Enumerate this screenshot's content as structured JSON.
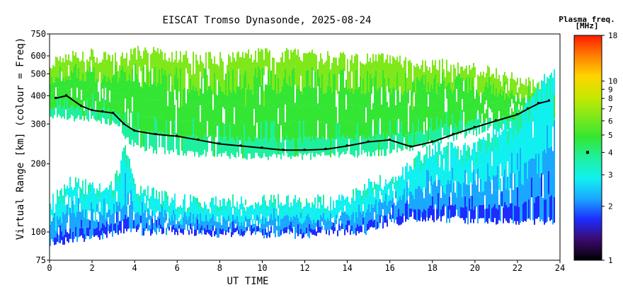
{
  "chart_data": {
    "type": "heatmap",
    "title": "EISCAT Tromso Dynasonde, 2025-08-24",
    "xlabel": "UT TIME",
    "ylabel": "Virtual Range [km] (colour = Freq)",
    "x_ticks": [
      0,
      2,
      4,
      6,
      8,
      10,
      12,
      14,
      16,
      18,
      20,
      22,
      24
    ],
    "xlim": [
      0,
      24
    ],
    "y_scale": "log",
    "ylim": [
      75,
      750
    ],
    "y_ticks": [
      75,
      100,
      200,
      300,
      400,
      500,
      600,
      750
    ],
    "colorbar": {
      "title_line1": "Plasma freq.",
      "title_line2": "[MHz]",
      "scale": "log",
      "range": [
        1,
        18
      ],
      "ticks": [
        1,
        2,
        3,
        4,
        5,
        6,
        7,
        8,
        9,
        10,
        18
      ],
      "marker_value": 4,
      "marker_color": "#000000",
      "colors": [
        "#000000",
        "#3b0a6e",
        "#1e2cff",
        "#1aa7ff",
        "#11f0f0",
        "#1ef0a0",
        "#33e633",
        "#7fe81a",
        "#c8e800",
        "#ffd400",
        "#ff7f00",
        "#ff1a00"
      ]
    },
    "bands": [
      {
        "name": "F",
        "t": [
          0,
          1,
          2,
          3,
          4,
          5,
          6,
          8,
          10,
          12,
          14,
          16,
          17,
          18,
          20,
          22,
          23.6
        ],
        "lower": [
          320,
          320,
          320,
          300,
          240,
          230,
          225,
          220,
          215,
          215,
          220,
          225,
          235,
          250,
          275,
          300,
          300
        ],
        "upper": [
          560,
          600,
          620,
          600,
          640,
          640,
          620,
          600,
          620,
          620,
          600,
          590,
          560,
          560,
          540,
          480,
          420
        ]
      },
      {
        "name": "E",
        "t": [
          0,
          1,
          2,
          3,
          3.6,
          4,
          6,
          8,
          10,
          12,
          14,
          15,
          16,
          18,
          20,
          22,
          23.6
        ],
        "lower": [
          90,
          92,
          95,
          98,
          100,
          100,
          100,
          98,
          97,
          97,
          100,
          100,
          110,
          115,
          112,
          112,
          112
        ],
        "upper": [
          135,
          170,
          160,
          160,
          240,
          160,
          140,
          140,
          140,
          140,
          140,
          170,
          170,
          240,
          240,
          330,
          520
        ]
      }
    ],
    "trace": {
      "color": "#000000",
      "t": [
        0.3,
        0.8,
        1.5,
        2.0,
        2.5,
        3.0,
        3.5,
        4.0,
        5.0,
        6.0,
        7.0,
        8.0,
        9.0,
        10.0,
        11.0,
        12.0,
        13.0,
        14.0,
        15.0,
        16.0,
        17.0,
        18.0,
        19.0,
        20.0,
        21.0,
        22.0,
        22.5,
        23.0,
        23.5
      ],
      "km": [
        390,
        400,
        360,
        345,
        340,
        335,
        300,
        280,
        270,
        265,
        255,
        245,
        240,
        235,
        230,
        230,
        232,
        240,
        250,
        255,
        238,
        250,
        270,
        290,
        310,
        330,
        350,
        370,
        380
      ]
    }
  }
}
